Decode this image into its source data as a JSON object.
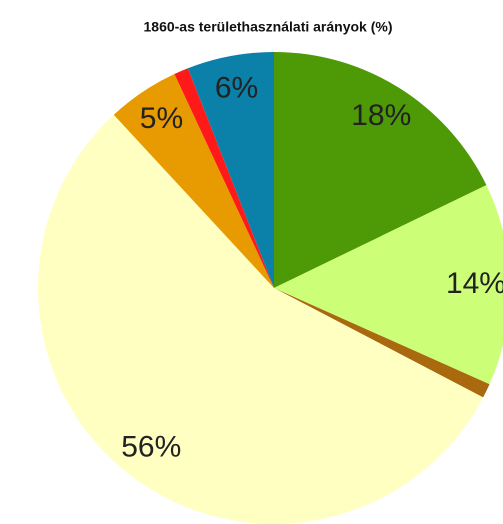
{
  "chart_data": {
    "type": "pie",
    "title": "1860-as területhasználati arányok (%)",
    "values": [
      18,
      14,
      1,
      56,
      5,
      1,
      6
    ],
    "value_labels": [
      "18%",
      "14%",
      null,
      "56%",
      "5%",
      null,
      "6%"
    ],
    "colors": [
      "#4e9a06",
      "#ccff77",
      "#a8690f",
      "#ffffc2",
      "#e89b00",
      "#ff1a1a",
      "#0b80a8"
    ]
  }
}
